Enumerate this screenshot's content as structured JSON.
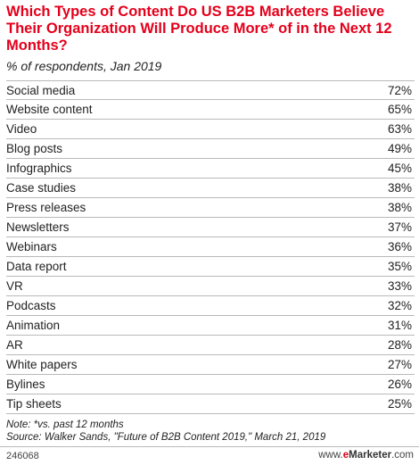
{
  "chart_data": {
    "type": "table",
    "title": "Which Types of Content Do US B2B Marketers Believe Their Organization Will Produce More* of in the Next 12 Months?",
    "subtitle": "% of respondents, Jan 2019",
    "categories": [
      "Social media",
      "Website content",
      "Video",
      "Blog posts",
      "Infographics",
      "Case studies",
      "Press releases",
      "Newsletters",
      "Webinars",
      "Data report",
      "VR",
      "Podcasts",
      "Animation",
      "AR",
      "White papers",
      "Bylines",
      "Tip sheets"
    ],
    "values": [
      72,
      65,
      63,
      49,
      45,
      38,
      38,
      37,
      36,
      35,
      33,
      32,
      31,
      28,
      27,
      26,
      25
    ],
    "value_suffix": "%",
    "note": "Note: *vs. past 12 months",
    "source": "Source: Walker Sands, \"Future of B2B Content 2019,\" March 21, 2019"
  },
  "footer": {
    "id": "246068",
    "brand_prefix": "www.",
    "brand_e": "e",
    "brand_name": "Marketer",
    "brand_suffix": ".com"
  },
  "colors": {
    "title": "#e4001b",
    "rule": "#b9b9b9"
  }
}
